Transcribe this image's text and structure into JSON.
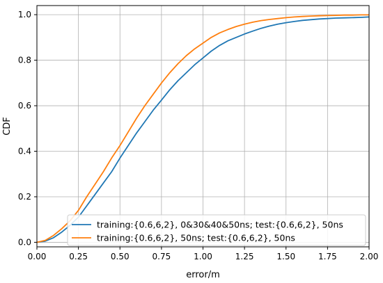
{
  "chart_data": {
    "type": "line",
    "xlabel": "error/m",
    "ylabel": "CDF",
    "xlim": [
      0,
      2.0
    ],
    "ylim": [
      -0.02,
      1.04
    ],
    "x_ticks": [
      0.0,
      0.25,
      0.5,
      0.75,
      1.0,
      1.25,
      1.5,
      1.75,
      2.0
    ],
    "x_tick_labels": [
      "0.00",
      "0.25",
      "0.50",
      "0.75",
      "1.00",
      "1.25",
      "1.50",
      "1.75",
      "2.00"
    ],
    "y_ticks": [
      0.0,
      0.2,
      0.4,
      0.6,
      0.8,
      1.0
    ],
    "y_tick_labels": [
      "0.0",
      "0.2",
      "0.4",
      "0.6",
      "0.8",
      "1.0"
    ],
    "grid": true,
    "legend_position": "lower-right",
    "series": [
      {
        "name": "training:{0.6,6,2}, 0&30&40&50ns; test:{0.6,6,2}, 50ns",
        "color": "#1f77b4",
        "x": [
          0.0,
          0.05,
          0.1,
          0.15,
          0.2,
          0.25,
          0.3,
          0.35,
          0.4,
          0.45,
          0.5,
          0.55,
          0.6,
          0.65,
          0.7,
          0.75,
          0.8,
          0.85,
          0.9,
          0.95,
          1.0,
          1.05,
          1.1,
          1.15,
          1.2,
          1.25,
          1.3,
          1.35,
          1.4,
          1.45,
          1.5,
          1.55,
          1.6,
          1.65,
          1.7,
          1.75,
          1.8,
          1.85,
          1.9,
          1.95,
          2.0
        ],
        "y": [
          0.0,
          0.005,
          0.02,
          0.045,
          0.075,
          0.11,
          0.16,
          0.21,
          0.26,
          0.31,
          0.37,
          0.425,
          0.48,
          0.53,
          0.58,
          0.625,
          0.67,
          0.71,
          0.745,
          0.78,
          0.81,
          0.84,
          0.865,
          0.885,
          0.9,
          0.915,
          0.928,
          0.94,
          0.95,
          0.958,
          0.965,
          0.97,
          0.975,
          0.978,
          0.981,
          0.983,
          0.985,
          0.986,
          0.987,
          0.988,
          0.99
        ]
      },
      {
        "name": "training:{0.6,6,2}, 50ns; test:{0.6,6,2}, 50ns",
        "color": "#ff7f0e",
        "x": [
          0.0,
          0.05,
          0.1,
          0.15,
          0.2,
          0.25,
          0.3,
          0.35,
          0.4,
          0.45,
          0.5,
          0.55,
          0.6,
          0.65,
          0.7,
          0.75,
          0.8,
          0.85,
          0.9,
          0.95,
          1.0,
          1.05,
          1.1,
          1.15,
          1.2,
          1.25,
          1.3,
          1.35,
          1.4,
          1.45,
          1.5,
          1.55,
          1.6,
          1.65,
          1.7,
          1.75,
          1.8,
          1.85,
          1.9,
          1.95,
          2.0
        ],
        "y": [
          0.0,
          0.008,
          0.03,
          0.06,
          0.095,
          0.14,
          0.2,
          0.255,
          0.31,
          0.37,
          0.425,
          0.485,
          0.545,
          0.6,
          0.65,
          0.7,
          0.745,
          0.785,
          0.82,
          0.85,
          0.875,
          0.9,
          0.92,
          0.935,
          0.948,
          0.958,
          0.967,
          0.974,
          0.979,
          0.983,
          0.987,
          0.99,
          0.992,
          0.994,
          0.995,
          0.996,
          0.997,
          0.998,
          0.998,
          0.999,
          0.999
        ]
      }
    ]
  }
}
